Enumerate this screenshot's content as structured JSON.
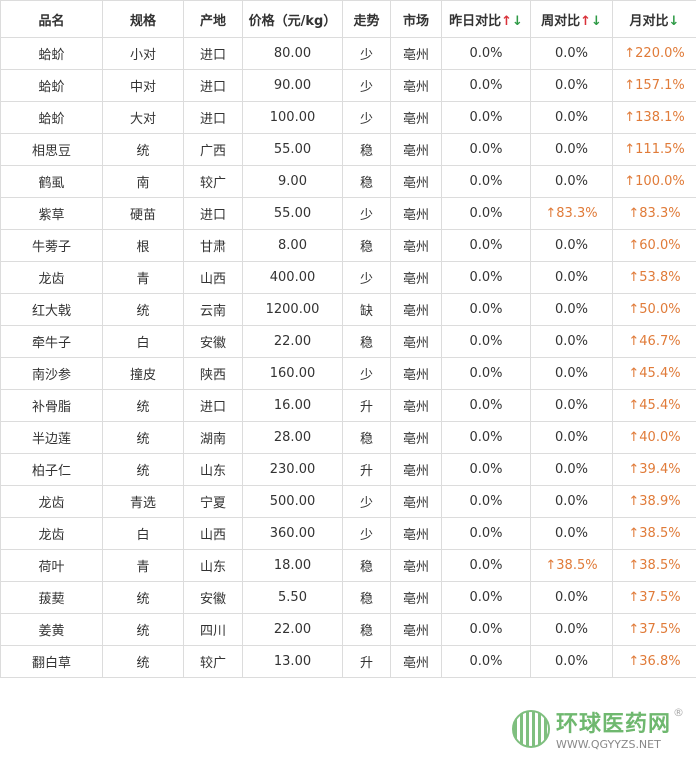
{
  "headers": {
    "name": "品名",
    "spec": "规格",
    "origin": "产地",
    "price": "价格（元/kg）",
    "trend": "走势",
    "market": "市场",
    "day": "昨日对比",
    "week": "周对比",
    "month": "月对比",
    "up_arrow": "↑",
    "down_arrow": "↓"
  },
  "rows": [
    {
      "name": "蛤蚧",
      "spec": "小对",
      "origin": "进口",
      "price": "80.00",
      "trend": "少",
      "market": "亳州",
      "day": "0.0%",
      "week": "0.0%",
      "month": "↑220.0%"
    },
    {
      "name": "蛤蚧",
      "spec": "中对",
      "origin": "进口",
      "price": "90.00",
      "trend": "少",
      "market": "亳州",
      "day": "0.0%",
      "week": "0.0%",
      "month": "↑157.1%"
    },
    {
      "name": "蛤蚧",
      "spec": "大对",
      "origin": "进口",
      "price": "100.00",
      "trend": "少",
      "market": "亳州",
      "day": "0.0%",
      "week": "0.0%",
      "month": "↑138.1%"
    },
    {
      "name": "相思豆",
      "spec": "统",
      "origin": "广西",
      "price": "55.00",
      "trend": "稳",
      "market": "亳州",
      "day": "0.0%",
      "week": "0.0%",
      "month": "↑111.5%"
    },
    {
      "name": "鹤虱",
      "spec": "南",
      "origin": "较广",
      "price": "9.00",
      "trend": "稳",
      "market": "亳州",
      "day": "0.0%",
      "week": "0.0%",
      "month": "↑100.0%"
    },
    {
      "name": "紫草",
      "spec": "硬苗",
      "origin": "进口",
      "price": "55.00",
      "trend": "少",
      "market": "亳州",
      "day": "0.0%",
      "week": "↑83.3%",
      "month": "↑83.3%"
    },
    {
      "name": "牛蒡子",
      "spec": "根",
      "origin": "甘肃",
      "price": "8.00",
      "trend": "稳",
      "market": "亳州",
      "day": "0.0%",
      "week": "0.0%",
      "month": "↑60.0%"
    },
    {
      "name": "龙齿",
      "spec": "青",
      "origin": "山西",
      "price": "400.00",
      "trend": "少",
      "market": "亳州",
      "day": "0.0%",
      "week": "0.0%",
      "month": "↑53.8%"
    },
    {
      "name": "红大戟",
      "spec": "统",
      "origin": "云南",
      "price": "1200.00",
      "trend": "缺",
      "market": "亳州",
      "day": "0.0%",
      "week": "0.0%",
      "month": "↑50.0%"
    },
    {
      "name": "牵牛子",
      "spec": "白",
      "origin": "安徽",
      "price": "22.00",
      "trend": "稳",
      "market": "亳州",
      "day": "0.0%",
      "week": "0.0%",
      "month": "↑46.7%"
    },
    {
      "name": "南沙参",
      "spec": "撞皮",
      "origin": "陕西",
      "price": "160.00",
      "trend": "少",
      "market": "亳州",
      "day": "0.0%",
      "week": "0.0%",
      "month": "↑45.4%"
    },
    {
      "name": "补骨脂",
      "spec": "统",
      "origin": "进口",
      "price": "16.00",
      "trend": "升",
      "market": "亳州",
      "day": "0.0%",
      "week": "0.0%",
      "month": "↑45.4%"
    },
    {
      "name": "半边莲",
      "spec": "统",
      "origin": "湖南",
      "price": "28.00",
      "trend": "稳",
      "market": "亳州",
      "day": "0.0%",
      "week": "0.0%",
      "month": "↑40.0%"
    },
    {
      "name": "柏子仁",
      "spec": "统",
      "origin": "山东",
      "price": "230.00",
      "trend": "升",
      "market": "亳州",
      "day": "0.0%",
      "week": "0.0%",
      "month": "↑39.4%"
    },
    {
      "name": "龙齿",
      "spec": "青选",
      "origin": "宁夏",
      "price": "500.00",
      "trend": "少",
      "market": "亳州",
      "day": "0.0%",
      "week": "0.0%",
      "month": "↑38.9%"
    },
    {
      "name": "龙齿",
      "spec": "白",
      "origin": "山西",
      "price": "360.00",
      "trend": "少",
      "market": "亳州",
      "day": "0.0%",
      "week": "0.0%",
      "month": "↑38.5%"
    },
    {
      "name": "荷叶",
      "spec": "青",
      "origin": "山东",
      "price": "18.00",
      "trend": "稳",
      "market": "亳州",
      "day": "0.0%",
      "week": "↑38.5%",
      "month": "↑38.5%"
    },
    {
      "name": "菝葜",
      "spec": "统",
      "origin": "安徽",
      "price": "5.50",
      "trend": "稳",
      "market": "亳州",
      "day": "0.0%",
      "week": "0.0%",
      "month": "↑37.5%"
    },
    {
      "name": "姜黄",
      "spec": "统",
      "origin": "四川",
      "price": "22.00",
      "trend": "稳",
      "market": "亳州",
      "day": "0.0%",
      "week": "0.0%",
      "month": "↑37.5%"
    },
    {
      "name": "翻白草",
      "spec": "统",
      "origin": "较广",
      "price": "13.00",
      "trend": "升",
      "market": "亳州",
      "day": "0.0%",
      "week": "0.0%",
      "month": "↑36.8%"
    }
  ],
  "watermark": {
    "cn": "环球医药网",
    "en": "WWW.QGYYZS.NET",
    "reg": "®"
  },
  "colors": {
    "up": "#e07b39",
    "arrow_up": "#d9323a",
    "arrow_down": "#2e9a46",
    "border": "#dcdcdc"
  }
}
